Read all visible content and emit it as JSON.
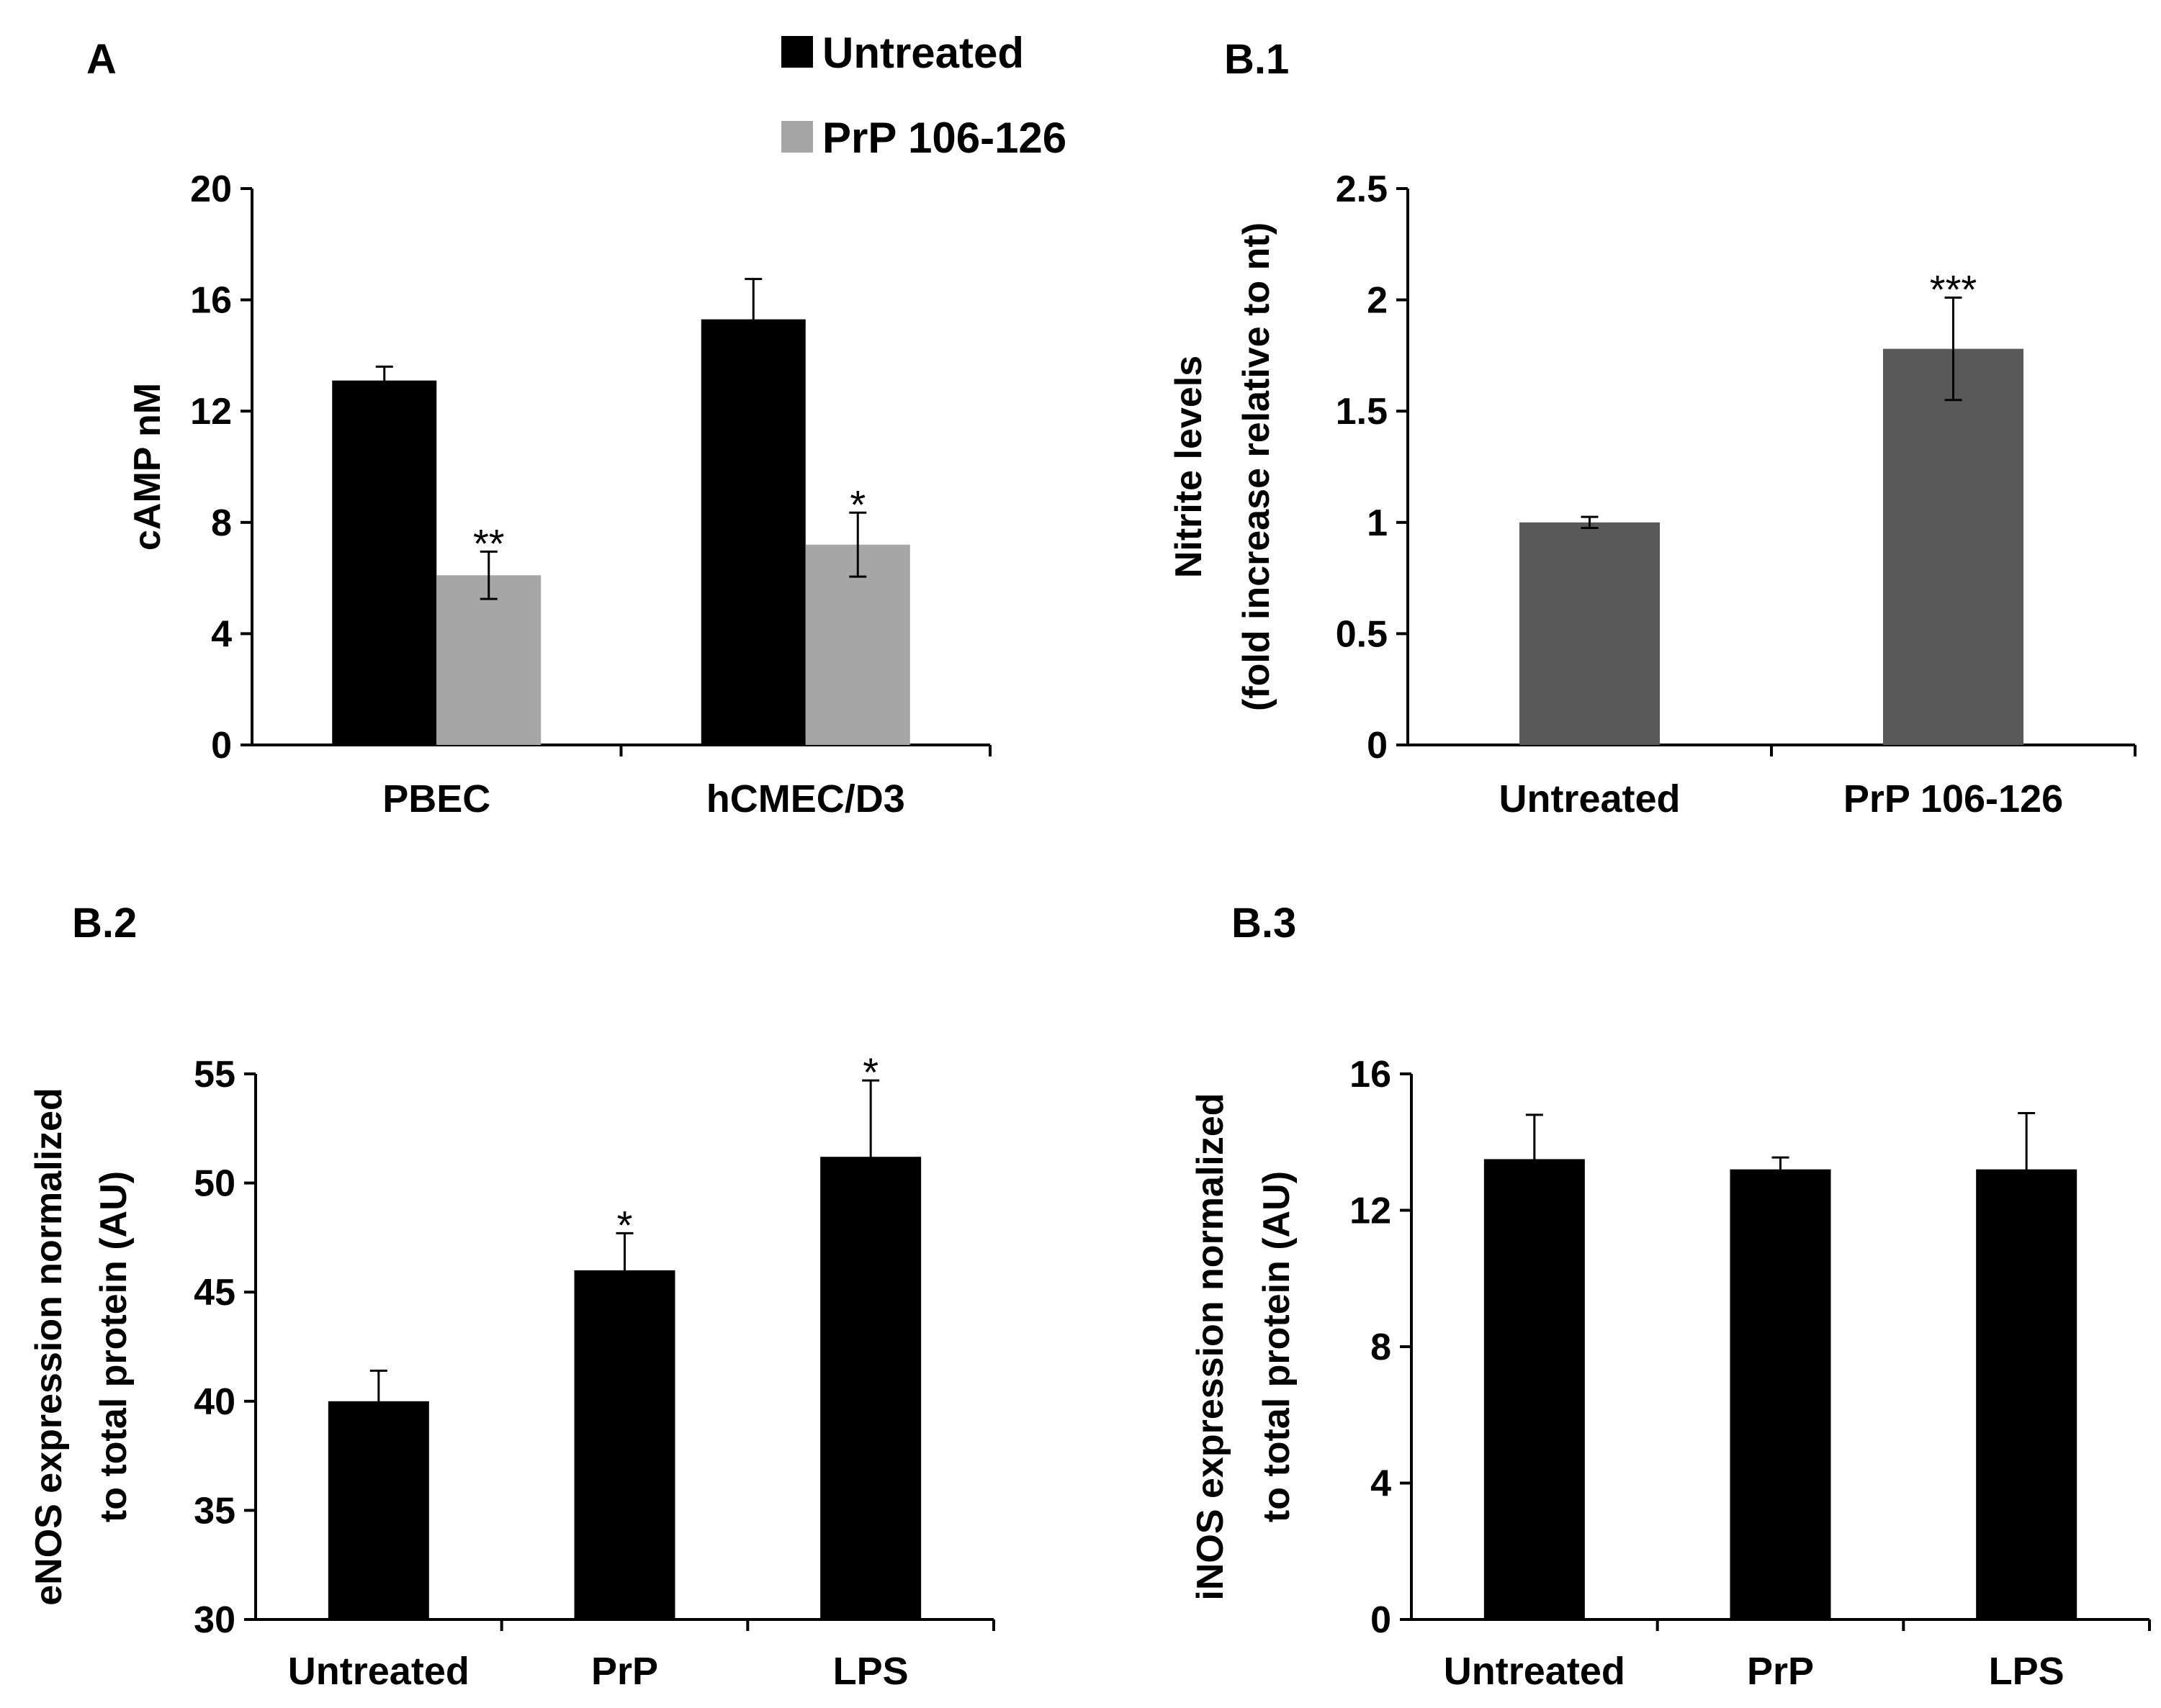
{
  "chart_data": [
    {
      "id": "A",
      "panel_label": "A",
      "type": "bar",
      "ylabel": "cAMP nM",
      "ylim": [
        0,
        20
      ],
      "yticks": [
        0,
        4,
        8,
        12,
        16,
        20
      ],
      "categories": [
        "PBEC",
        "hCMEC/D3"
      ],
      "series": [
        {
          "name": "Untreated",
          "color": "#000000",
          "values": [
            13.1,
            15.3
          ],
          "errors": [
            0.5,
            1.45
          ],
          "sig": [
            "",
            ""
          ]
        },
        {
          "name": "PrP 106-126",
          "color": "#a6a6a6",
          "values": [
            6.1,
            7.2
          ],
          "errors": [
            0.85,
            1.15
          ],
          "sig": [
            "**",
            "*"
          ]
        }
      ],
      "legend": [
        "Untreated",
        "PrP 106-126"
      ],
      "legend_position": "top"
    },
    {
      "id": "B1",
      "panel_label": "B.1",
      "type": "bar",
      "ylabel": [
        "Nitrite levels",
        "(fold increase relative to nt)"
      ],
      "ylim": [
        0,
        2.5
      ],
      "yticks": [
        "0",
        "0.5",
        "1",
        "1.5",
        "2",
        "2.5"
      ],
      "categories": [
        "Untreated",
        "PrP 106-126"
      ],
      "series": [
        {
          "name": "Nitrite",
          "color": "#595959",
          "values": [
            1.0,
            1.78
          ],
          "errors": [
            0.025,
            0.23
          ],
          "sig": [
            "",
            "***"
          ]
        }
      ]
    },
    {
      "id": "B2",
      "panel_label": "B.2",
      "type": "bar",
      "ylabel": [
        "eNOS expression normalized",
        "to total protein (AU)"
      ],
      "ylim": [
        30,
        55
      ],
      "yticks": [
        30,
        35,
        40,
        45,
        50,
        55
      ],
      "categories": [
        "Untreated",
        "PrP",
        "LPS"
      ],
      "series": [
        {
          "name": "eNOS",
          "color": "#000000",
          "values": [
            40.0,
            46.0,
            51.2
          ],
          "errors": [
            1.4,
            1.7,
            3.5
          ],
          "sig": [
            "",
            "*",
            "*"
          ]
        }
      ]
    },
    {
      "id": "B3",
      "panel_label": "B.3",
      "type": "bar",
      "ylabel": [
        "iNOS expression normalized",
        "to total protein (AU)"
      ],
      "ylim": [
        0,
        16
      ],
      "yticks": [
        0,
        4,
        8,
        12,
        16
      ],
      "categories": [
        "Untreated",
        "PrP",
        "LPS"
      ],
      "series": [
        {
          "name": "iNOS",
          "color": "#000000",
          "values": [
            13.5,
            13.2,
            13.2
          ],
          "errors": [
            1.3,
            0.35,
            1.65
          ],
          "sig": [
            "",
            "",
            ""
          ]
        }
      ]
    }
  ]
}
